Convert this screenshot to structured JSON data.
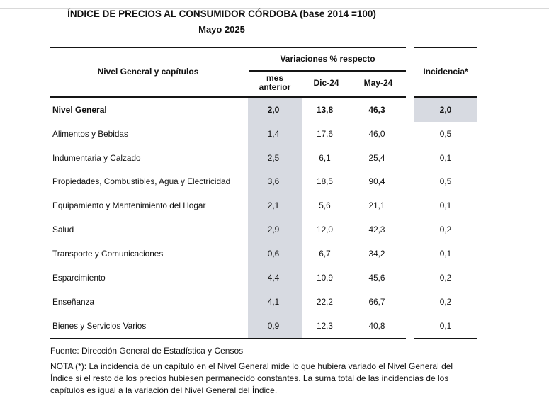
{
  "page": {
    "title": "ÍNDICE DE PRECIOS AL CONSUMIDOR CÓRDOBA (base 2014 =100)",
    "subtitle": "Mayo 2025"
  },
  "table": {
    "left_header": "Nivel General y capítulos",
    "group_header": "Variaciones % respecto",
    "sub_headers": [
      "mes anterior",
      "Dic-24",
      "May-24"
    ],
    "incidencia_header": "Incidencia*",
    "rows": [
      {
        "label": "Nivel General",
        "mes": "2,0",
        "dic": "13,8",
        "may": "46,3",
        "inc": "2,0"
      },
      {
        "label": "Alimentos y Bebidas",
        "mes": "1,4",
        "dic": "17,6",
        "may": "46,0",
        "inc": "0,5"
      },
      {
        "label": "Indumentaria y Calzado",
        "mes": "2,5",
        "dic": "6,1",
        "may": "25,4",
        "inc": "0,1"
      },
      {
        "label": "Propiedades, Combustibles, Agua y Electricidad",
        "mes": "3,6",
        "dic": "18,5",
        "may": "90,4",
        "inc": "0,5"
      },
      {
        "label": "Equipamiento y Mantenimiento del Hogar",
        "mes": "2,1",
        "dic": "5,6",
        "may": "21,1",
        "inc": "0,1"
      },
      {
        "label": "Salud",
        "mes": "2,9",
        "dic": "12,0",
        "may": "42,3",
        "inc": "0,2"
      },
      {
        "label": "Transporte y Comunicaciones",
        "mes": "0,6",
        "dic": "6,7",
        "may": "34,2",
        "inc": "0,1"
      },
      {
        "label": "Esparcimiento",
        "mes": "4,4",
        "dic": "10,9",
        "may": "45,6",
        "inc": "0,2"
      },
      {
        "label": "Enseñanza",
        "mes": "4,1",
        "dic": "22,2",
        "may": "66,7",
        "inc": "0,2"
      },
      {
        "label": "Bienes y Servicios Varios",
        "mes": "0,9",
        "dic": "12,3",
        "may": "40,8",
        "inc": "0,1"
      }
    ]
  },
  "footer": {
    "fuente": "Fuente: Dirección General de Estadística y Censos",
    "nota": "NOTA (*): La incidencia de un capítulo en el Nivel General mide lo que hubiera variado el Nivel General del Índice si el resto de los precios hubiesen permanecido constantes. La suma total de las incidencias de los capítulos es igual a la variación del Nivel General del Índice."
  },
  "colors": {
    "column_shading": "#d7dae1",
    "table_rule": "#151515",
    "top_frame_line": "#d9d9d9"
  }
}
